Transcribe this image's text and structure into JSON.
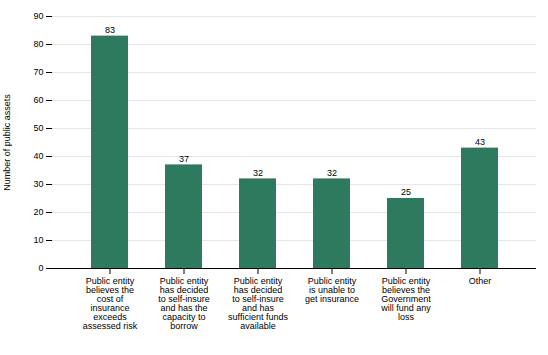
{
  "chart_data": {
    "type": "bar",
    "categories": [
      "Public entity\nbelieves the\ncost of\ninsurance\nexceeds\nassessed risk",
      "Public entity\nhas decided\nto self-insure\nand has the\ncapacity to\nborrow",
      "Public entity\nhas decided\nto self-insure\nand has\nsufficient funds\navailable",
      "Public entity\nis unable to\nget insurance",
      "Public entity\nbelieves the\nGovernment\nwill fund any\nloss",
      "Other"
    ],
    "values": [
      83,
      37,
      32,
      32,
      25,
      43
    ],
    "color": "#2d7a5e",
    "ylabel": "Number of public assets",
    "ylim": [
      0,
      90
    ],
    "yticks": [
      0,
      10,
      20,
      30,
      40,
      50,
      60,
      70,
      80,
      90
    ],
    "grid": true,
    "data_labels": true
  }
}
